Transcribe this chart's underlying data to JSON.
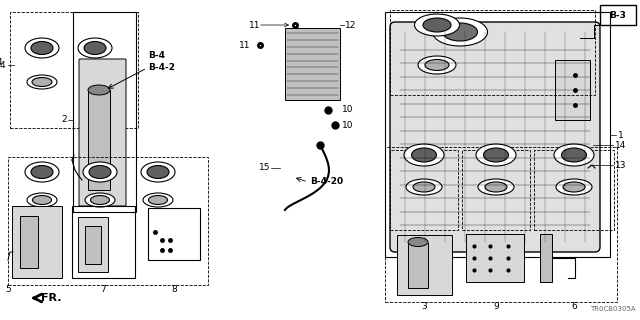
{
  "bg_color": "#ffffff",
  "line_color": "#000000",
  "figsize": [
    6.4,
    3.2
  ],
  "dpi": 100,
  "part_number": "TR0CB0305A",
  "gray_fill": "#a0a0a0",
  "light_gray": "#d8d8d8",
  "dark_gray": "#505050"
}
